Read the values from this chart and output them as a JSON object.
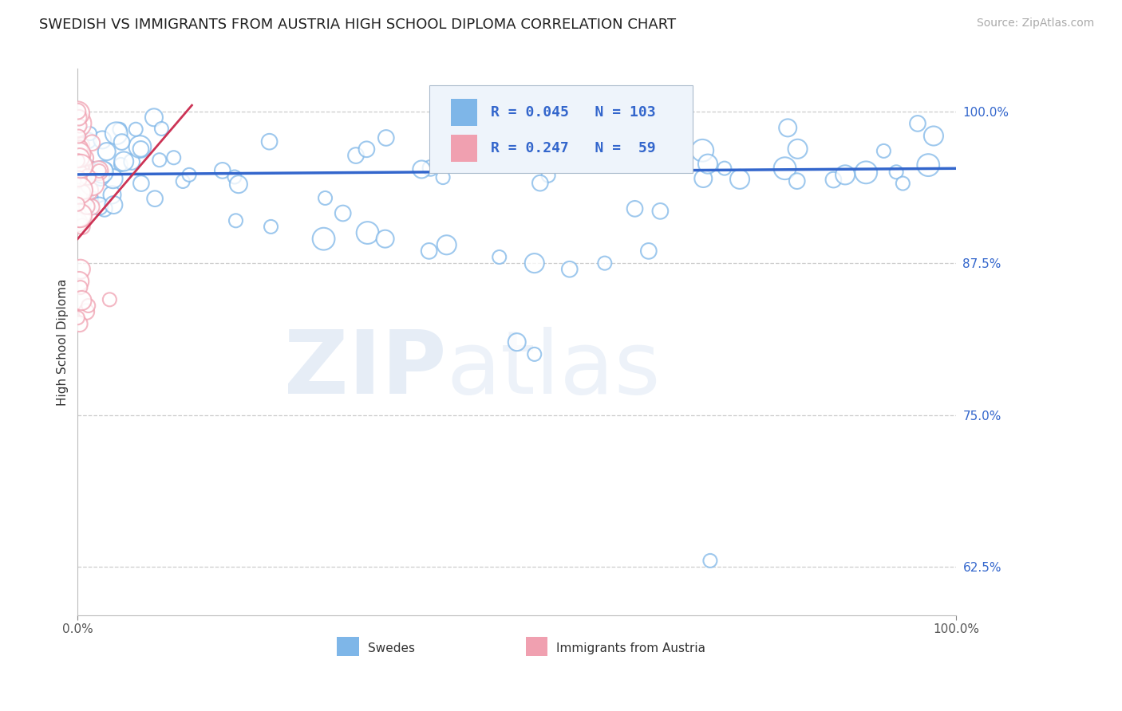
{
  "title": "SWEDISH VS IMMIGRANTS FROM AUSTRIA HIGH SCHOOL DIPLOMA CORRELATION CHART",
  "source": "Source: ZipAtlas.com",
  "ylabel": "High School Diploma",
  "yticks": [
    0.625,
    0.75,
    0.875,
    1.0
  ],
  "ytick_labels": [
    "62.5%",
    "75.0%",
    "87.5%",
    "100.0%"
  ],
  "xlim": [
    0.0,
    1.0
  ],
  "ylim": [
    0.585,
    1.035
  ],
  "blue_R": 0.045,
  "blue_N": 103,
  "pink_R": 0.247,
  "pink_N": 59,
  "blue_color": "#7EB6E8",
  "pink_color": "#F0A0B0",
  "blue_edge_color": "#7EB6E8",
  "pink_edge_color": "#F0A0B0",
  "blue_line_color": "#3366CC",
  "pink_line_color": "#CC3355",
  "legend_label_blue": "Swedes",
  "legend_label_pink": "Immigrants from Austria",
  "watermark_zip": "ZIP",
  "watermark_atlas": "atlas",
  "background_color": "#FFFFFF",
  "title_fontsize": 13,
  "axis_label_fontsize": 11,
  "tick_fontsize": 11,
  "legend_fontsize": 13,
  "source_fontsize": 10,
  "blue_trend_x0": 0.0,
  "blue_trend_x1": 1.0,
  "blue_trend_y0": 0.948,
  "blue_trend_y1": 0.953,
  "pink_trend_x0": 0.0,
  "pink_trend_x1": 0.13,
  "pink_trend_y0": 0.895,
  "pink_trend_y1": 1.005
}
